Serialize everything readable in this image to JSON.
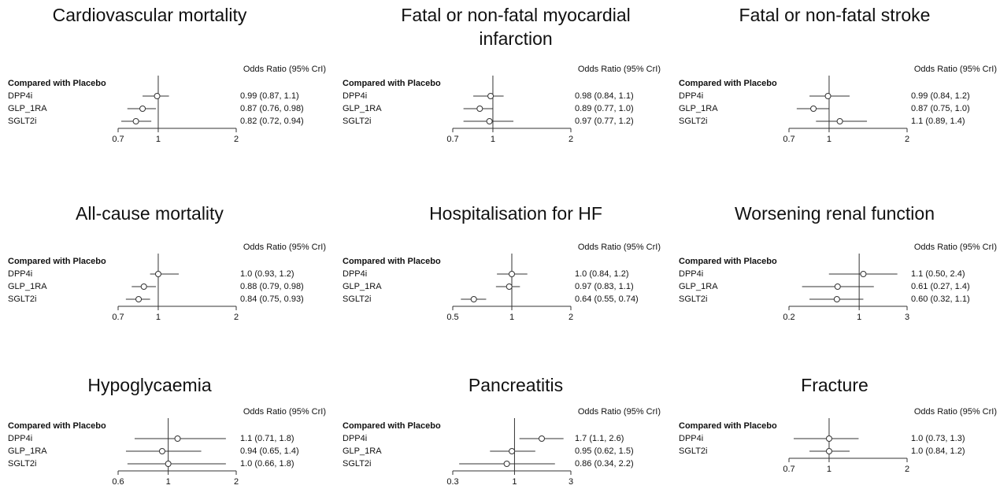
{
  "chart_data": [
    {
      "type": "forest",
      "title": "Cardiovascular mortality",
      "column_header": "Odds Ratio (95% CrI)",
      "group": "Compared with Placebo",
      "categories": [
        "DPP4i",
        "GLP_1RA",
        "SGLT2i"
      ],
      "values": [
        0.99,
        0.87,
        0.82
      ],
      "lower": [
        0.87,
        0.76,
        0.72
      ],
      "upper": [
        1.1,
        0.98,
        0.94
      ],
      "value_labels": [
        "0.99 (0.87, 1.1)",
        "0.87 (0.76, 0.98)",
        "0.82 (0.72, 0.94)"
      ],
      "xscale": "log",
      "xlim": [
        0.7,
        2
      ],
      "xticks": [
        0.7,
        1,
        2
      ],
      "reference": 1
    },
    {
      "type": "forest",
      "title": "Fatal or non-fatal myocardial infarction",
      "column_header": "Odds Ratio (95% CrI)",
      "group": "Compared with Placebo",
      "categories": [
        "DPP4i",
        "GLP_1RA",
        "SGLT2i"
      ],
      "values": [
        0.98,
        0.89,
        0.97
      ],
      "lower": [
        0.84,
        0.77,
        0.77
      ],
      "upper": [
        1.1,
        1.0,
        1.2
      ],
      "value_labels": [
        "0.98 (0.84, 1.1)",
        "0.89 (0.77, 1.0)",
        "0.97 (0.77, 1.2)"
      ],
      "xscale": "log",
      "xlim": [
        0.7,
        2
      ],
      "xticks": [
        0.7,
        1,
        2
      ],
      "reference": 1
    },
    {
      "type": "forest",
      "title": "Fatal or non-fatal stroke",
      "column_header": "Odds Ratio (95% CrI)",
      "group": "Compared with Placebo",
      "categories": [
        "DPP4i",
        "GLP_1RA",
        "SGLT2i"
      ],
      "values": [
        0.99,
        0.87,
        1.1
      ],
      "lower": [
        0.84,
        0.75,
        0.89
      ],
      "upper": [
        1.2,
        1.0,
        1.4
      ],
      "value_labels": [
        "0.99 (0.84, 1.2)",
        "0.87 (0.75, 1.0)",
        "1.1 (0.89, 1.4)"
      ],
      "xscale": "log",
      "xlim": [
        0.7,
        2
      ],
      "xticks": [
        0.7,
        1,
        2
      ],
      "reference": 1
    },
    {
      "type": "forest",
      "title": "All-cause mortality",
      "column_header": "Odds Ratio (95% CrI)",
      "group": "Compared with Placebo",
      "categories": [
        "DPP4i",
        "GLP_1RA",
        "SGLT2i"
      ],
      "values": [
        1.0,
        0.88,
        0.84
      ],
      "lower": [
        0.93,
        0.79,
        0.75
      ],
      "upper": [
        1.2,
        0.98,
        0.93
      ],
      "value_labels": [
        "1.0 (0.93, 1.2)",
        "0.88 (0.79, 0.98)",
        "0.84 (0.75, 0.93)"
      ],
      "xscale": "log",
      "xlim": [
        0.7,
        2
      ],
      "xticks": [
        0.7,
        1,
        2
      ],
      "reference": 1
    },
    {
      "type": "forest",
      "title": "Hospitalisation for HF",
      "column_header": "Odds Ratio (95% CrI)",
      "group": "Compared with Placebo",
      "categories": [
        "DPP4i",
        "GLP_1RA",
        "SGLT2i"
      ],
      "values": [
        1.0,
        0.97,
        0.64
      ],
      "lower": [
        0.84,
        0.83,
        0.55
      ],
      "upper": [
        1.2,
        1.1,
        0.74
      ],
      "value_labels": [
        "1.0 (0.84, 1.2)",
        "0.97 (0.83, 1.1)",
        "0.64 (0.55, 0.74)"
      ],
      "xscale": "log",
      "xlim": [
        0.5,
        2
      ],
      "xticks": [
        0.5,
        1,
        2
      ],
      "reference": 1
    },
    {
      "type": "forest",
      "title": "Worsening renal function",
      "column_header": "Odds Ratio (95% CrI)",
      "group": "Compared with Placebo",
      "categories": [
        "DPP4i",
        "GLP_1RA",
        "SGLT2i"
      ],
      "values": [
        1.1,
        0.61,
        0.6
      ],
      "lower": [
        0.5,
        0.27,
        0.32
      ],
      "upper": [
        2.4,
        1.4,
        1.1
      ],
      "value_labels": [
        "1.1 (0.50, 2.4)",
        "0.61 (0.27, 1.4)",
        "0.60 (0.32, 1.1)"
      ],
      "xscale": "log",
      "xlim": [
        0.2,
        3
      ],
      "xticks": [
        0.2,
        1,
        3
      ],
      "reference": 1
    },
    {
      "type": "forest",
      "title": "Hypoglycaemia",
      "column_header": "Odds Ratio (95% CrI)",
      "group": "Compared with Placebo",
      "categories": [
        "DPP4i",
        "GLP_1RA",
        "SGLT2i"
      ],
      "values": [
        1.1,
        0.94,
        1.0
      ],
      "lower": [
        0.71,
        0.65,
        0.66
      ],
      "upper": [
        1.8,
        1.4,
        1.8
      ],
      "value_labels": [
        "1.1 (0.71, 1.8)",
        "0.94 (0.65, 1.4)",
        "1.0 (0.66, 1.8)"
      ],
      "xscale": "log",
      "xlim": [
        0.6,
        2
      ],
      "xticks": [
        0.6,
        1,
        2
      ],
      "reference": 1
    },
    {
      "type": "forest",
      "title": "Pancreatitis",
      "column_header": "Odds Ratio (95% CrI)",
      "group": "Compared with Placebo",
      "categories": [
        "DPP4i",
        "GLP_1RA",
        "SGLT2i"
      ],
      "values": [
        1.7,
        0.95,
        0.86
      ],
      "lower": [
        1.1,
        0.62,
        0.34
      ],
      "upper": [
        2.6,
        1.5,
        2.2
      ],
      "value_labels": [
        "1.7 (1.1, 2.6)",
        "0.95 (0.62, 1.5)",
        "0.86 (0.34, 2.2)"
      ],
      "xscale": "log",
      "xlim": [
        0.3,
        3
      ],
      "xticks": [
        0.3,
        1,
        3
      ],
      "reference": 1
    },
    {
      "type": "forest",
      "title": "Fracture",
      "column_header": "Odds Ratio (95% CrI)",
      "group": "Compared with Placebo",
      "categories": [
        "DPP4i",
        "SGLT2i"
      ],
      "values": [
        1.0,
        1.0
      ],
      "lower": [
        0.73,
        0.84
      ],
      "upper": [
        1.3,
        1.2
      ],
      "value_labels": [
        "1.0 (0.73, 1.3)",
        "1.0 (0.84, 1.2)"
      ],
      "xscale": "log",
      "xlim": [
        0.7,
        2
      ],
      "xticks": [
        0.7,
        1,
        2
      ],
      "reference": 1
    }
  ]
}
